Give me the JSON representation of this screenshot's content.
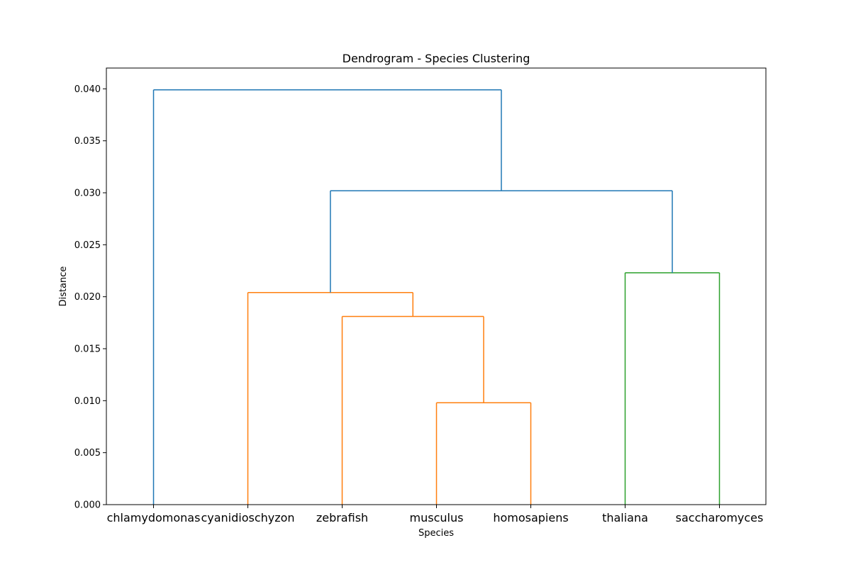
{
  "chart_data": {
    "type": "dendrogram",
    "title": "Dendrogram - Species Clustering",
    "xlabel": "Species",
    "ylabel": "Distance",
    "ylim": [
      0,
      0.042
    ],
    "yticks": [
      "0.000",
      "0.005",
      "0.010",
      "0.015",
      "0.020",
      "0.025",
      "0.030",
      "0.035",
      "0.040"
    ],
    "ytick_values": [
      0,
      0.005,
      0.01,
      0.015,
      0.02,
      0.025,
      0.03,
      0.035,
      0.04
    ],
    "leaves": [
      "chlamydomonas",
      "cyanidioschyzon",
      "zebrafish",
      "musculus",
      "homosapiens",
      "thaliana",
      "saccharomyces"
    ],
    "grid": false,
    "links": [
      {
        "left": "musculus",
        "right": "homosapiens",
        "distance": 0.0098,
        "color": "#ff7f0e"
      },
      {
        "left": "zebrafish",
        "right": "musculus + homosapiens",
        "distance": 0.0181,
        "color": "#ff7f0e"
      },
      {
        "left": "cyanidioschyzon",
        "right": "zebrafish + musculus + homosapiens",
        "distance": 0.0204,
        "color": "#ff7f0e"
      },
      {
        "left": "thaliana",
        "right": "saccharomyces",
        "distance": 0.0223,
        "color": "#2ca02c"
      },
      {
        "left": "orange cluster",
        "right": "green cluster",
        "distance": 0.0302,
        "color": "#1f77b4"
      },
      {
        "left": "chlamydomonas",
        "right": "all others",
        "distance": 0.0399,
        "color": "#1f77b4"
      }
    ]
  }
}
